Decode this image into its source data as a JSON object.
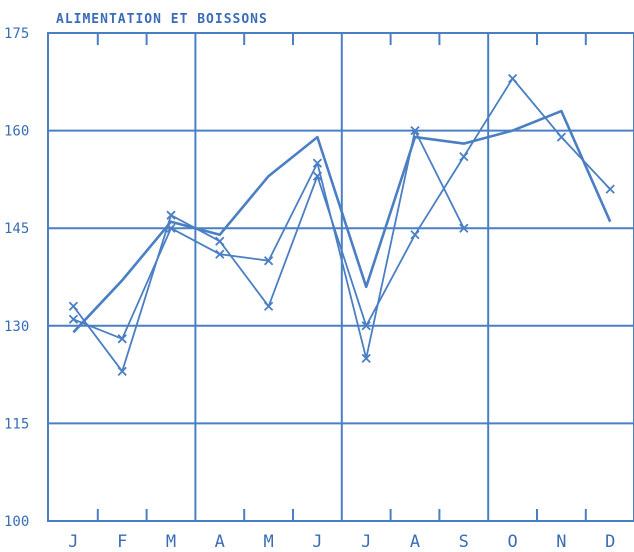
{
  "chart_data": {
    "type": "line",
    "title": "ALIMENTATION ET BOISSONS",
    "xlabel": "",
    "ylabel": "",
    "categories": [
      "J",
      "F",
      "M",
      "A",
      "M",
      "J",
      "J",
      "A",
      "S",
      "O",
      "N",
      "D"
    ],
    "ylim": [
      100,
      175
    ],
    "yticks": [
      100,
      115,
      130,
      145,
      160,
      175
    ],
    "grid": true,
    "colors": {
      "series": "#4a7fc4",
      "grid": "#4a7fc4",
      "text": "#3a6db5",
      "background": "#ffffff"
    },
    "series": [
      {
        "marker": "x",
        "values": [
          133,
          123,
          147,
          143,
          133,
          153,
          130,
          144,
          156,
          168,
          159,
          151
        ]
      },
      {
        "marker": "none",
        "values": [
          129,
          137,
          146,
          144,
          153,
          159,
          136,
          159,
          158,
          160,
          163,
          146
        ]
      },
      {
        "marker": "x",
        "values": [
          131,
          128,
          145,
          141,
          140,
          155,
          125,
          160,
          145,
          null,
          null,
          null
        ]
      }
    ]
  }
}
